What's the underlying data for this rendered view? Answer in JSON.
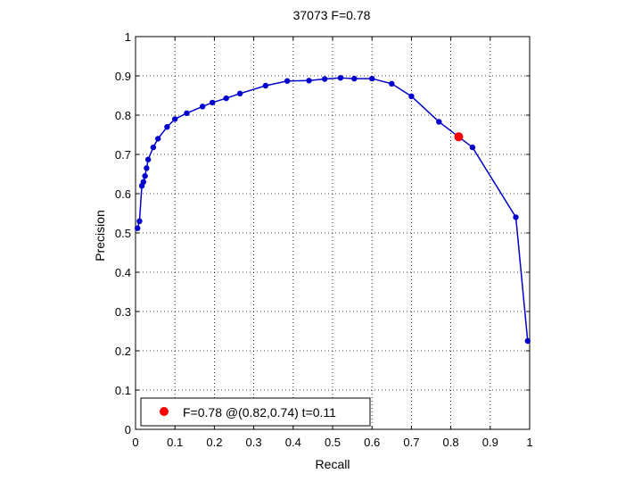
{
  "chart_data": {
    "type": "line",
    "title": "37073 F=0.78",
    "xlabel": "Recall",
    "ylabel": "Precision",
    "xlim": [
      0,
      1
    ],
    "ylim": [
      0,
      1
    ],
    "xticks": [
      "0",
      "0.1",
      "0.2",
      "0.3",
      "0.4",
      "0.5",
      "0.6",
      "0.7",
      "0.8",
      "0.9",
      "1"
    ],
    "yticks": [
      "0",
      "0.1",
      "0.2",
      "0.3",
      "0.4",
      "0.5",
      "0.6",
      "0.7",
      "0.8",
      "0.9",
      "1"
    ],
    "grid": true,
    "legend_position": "bottom-left",
    "series": [
      {
        "color": "#0000cc",
        "x": [
          0.005,
          0.01,
          0.016,
          0.02,
          0.024,
          0.028,
          0.032,
          0.045,
          0.057,
          0.08,
          0.1,
          0.13,
          0.17,
          0.195,
          0.23,
          0.265,
          0.33,
          0.385,
          0.44,
          0.48,
          0.52,
          0.555,
          0.6,
          0.65,
          0.7,
          0.77,
          0.855,
          0.965,
          0.995
        ],
        "y": [
          0.512,
          0.53,
          0.62,
          0.63,
          0.645,
          0.665,
          0.687,
          0.718,
          0.74,
          0.77,
          0.79,
          0.805,
          0.822,
          0.832,
          0.843,
          0.855,
          0.875,
          0.887,
          0.888,
          0.892,
          0.895,
          0.893,
          0.893,
          0.88,
          0.848,
          0.783,
          0.718,
          0.54,
          0.225
        ]
      }
    ],
    "highlight": {
      "x": 0.82,
      "y": 0.745,
      "color": "#ff0000"
    },
    "legend": [
      {
        "label": "F=0.78 @(0.82,0.74) t=0.11",
        "color": "#ff0000"
      }
    ]
  }
}
